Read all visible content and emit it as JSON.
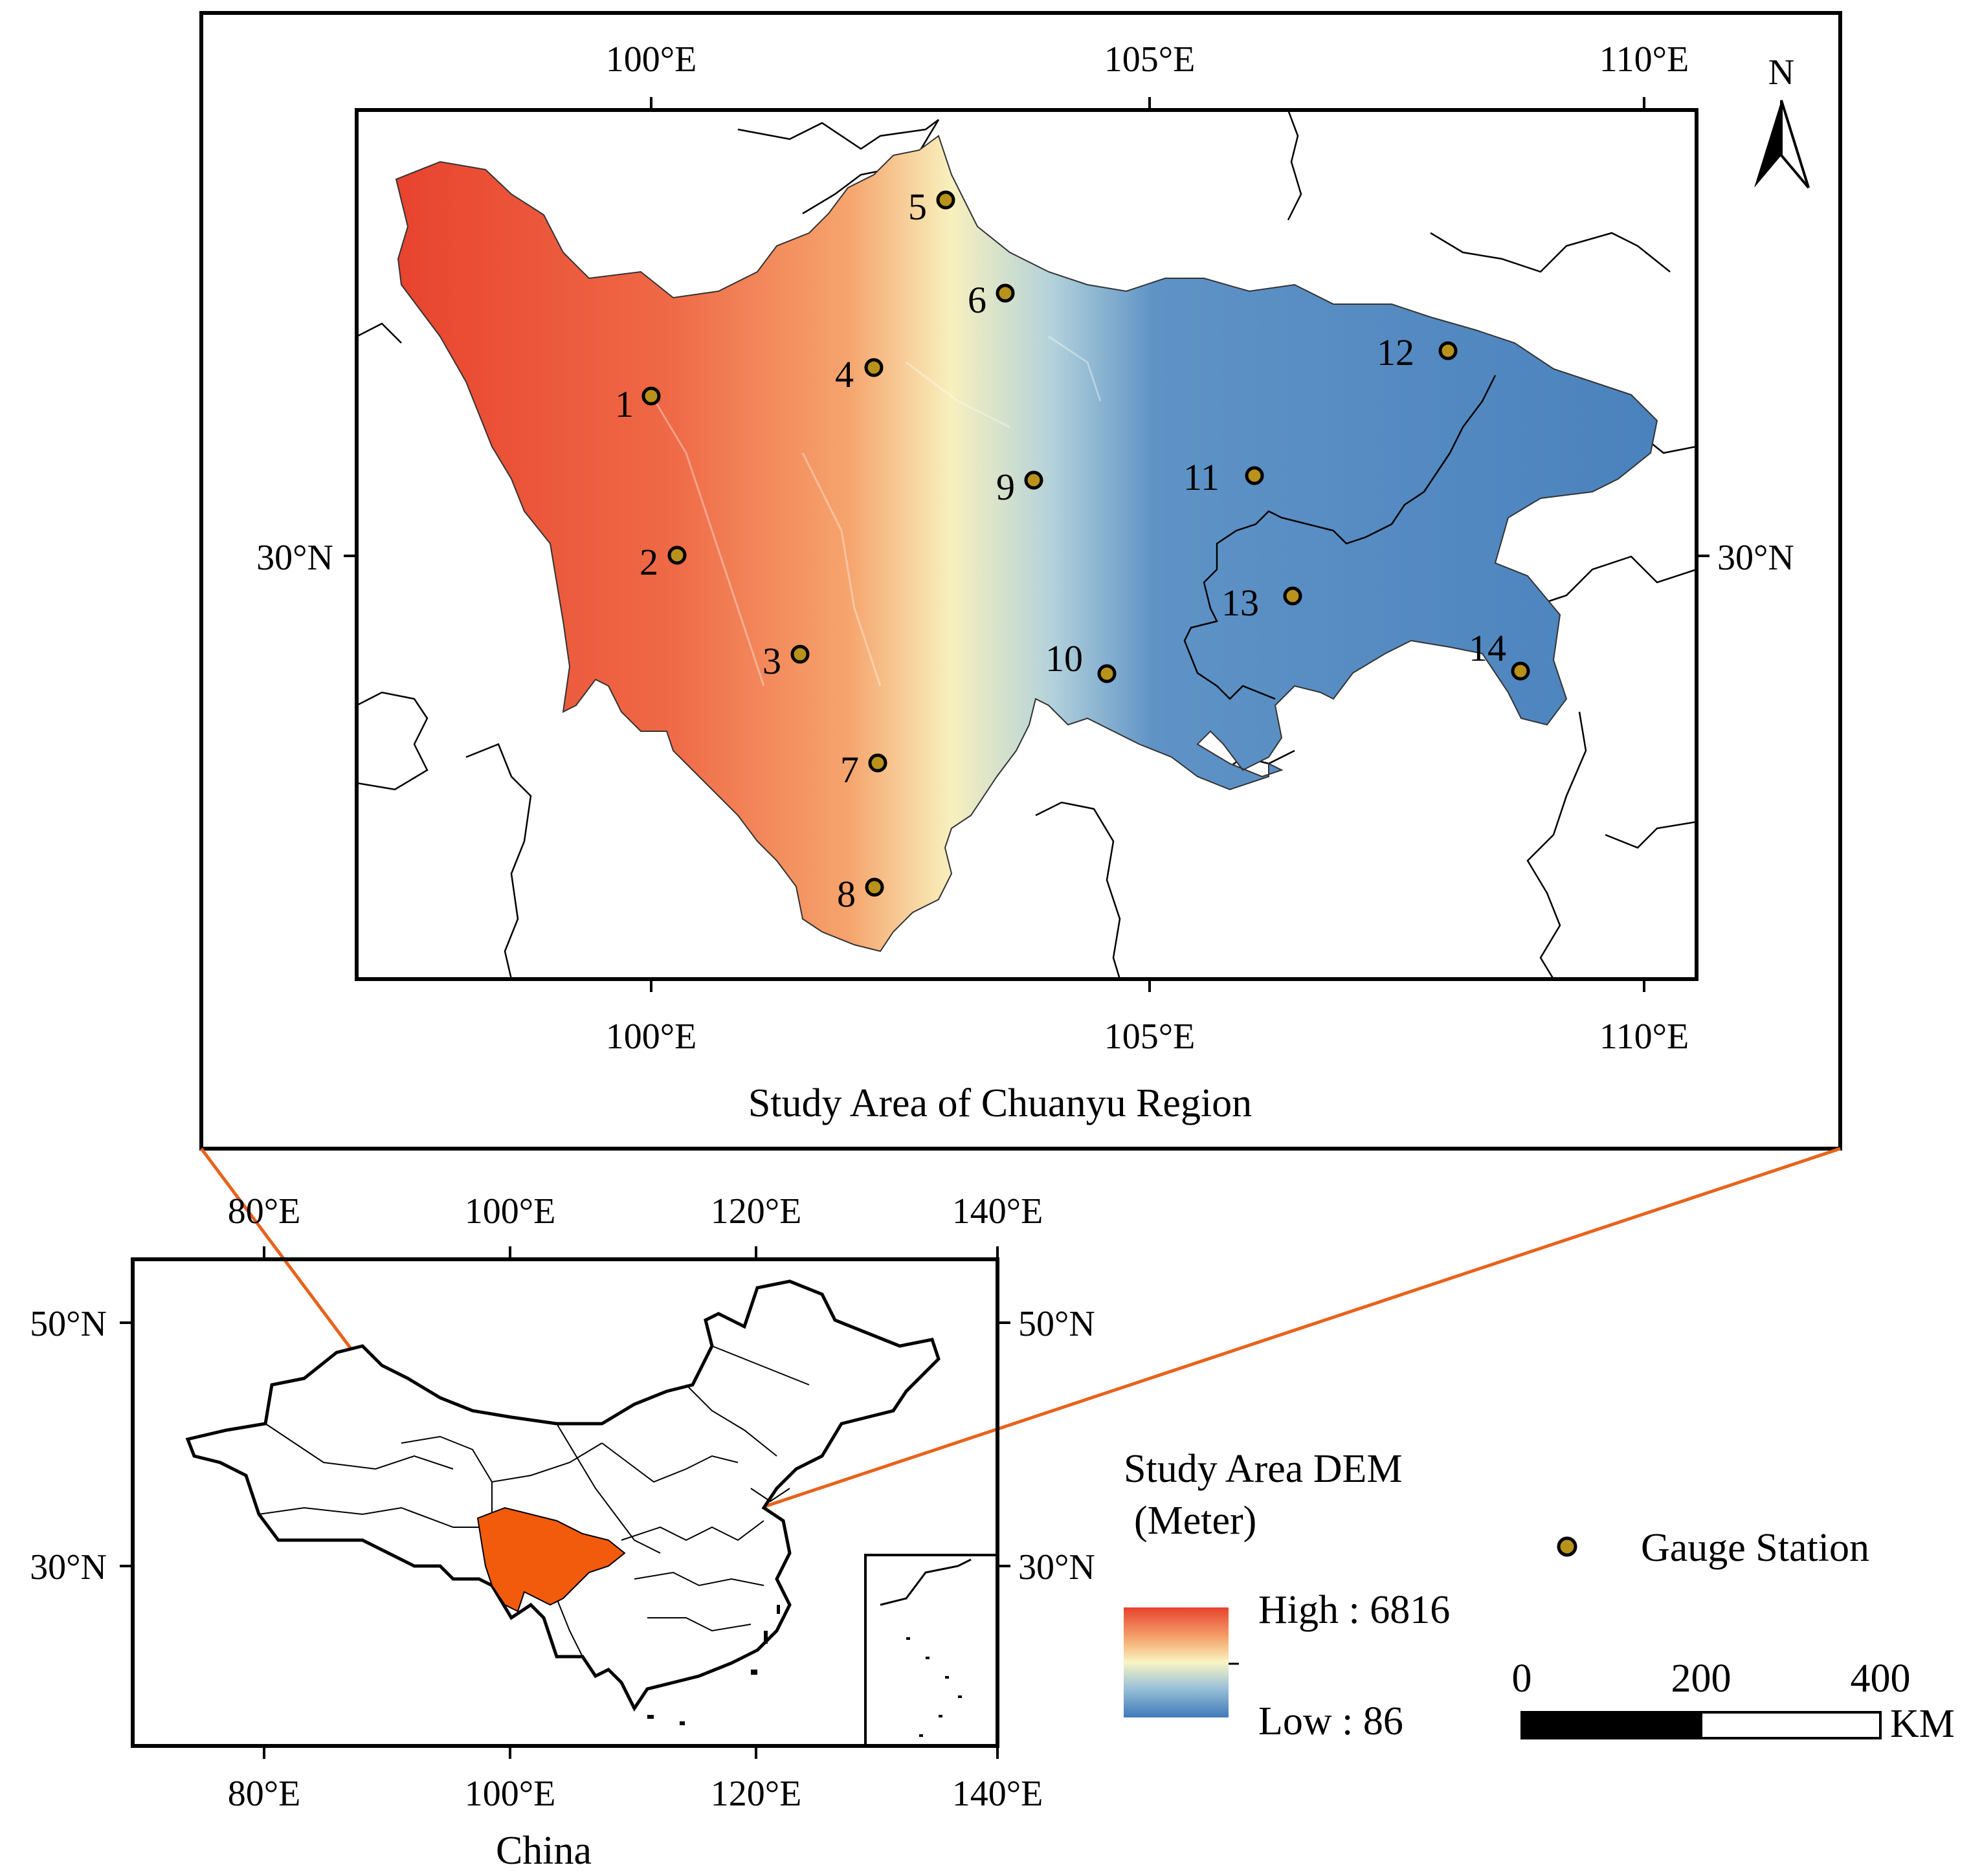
{
  "inset_map": {
    "caption": "Study Area of Chuanyu Region",
    "lon_ticks": [
      "100°E",
      "105°E",
      "110°E"
    ],
    "lat_tick": "30°N",
    "north_arrow_label": "N",
    "stations": [
      {
        "id": "1"
      },
      {
        "id": "2"
      },
      {
        "id": "3"
      },
      {
        "id": "4"
      },
      {
        "id": "5"
      },
      {
        "id": "6"
      },
      {
        "id": "7"
      },
      {
        "id": "8"
      },
      {
        "id": "9"
      },
      {
        "id": "10"
      },
      {
        "id": "11"
      },
      {
        "id": "12"
      },
      {
        "id": "13"
      },
      {
        "id": "14"
      }
    ]
  },
  "overview_map": {
    "caption": "China",
    "lon_ticks": [
      "80°E",
      "100°E",
      "120°E",
      "140°E"
    ],
    "lat_ticks": [
      "50°N",
      "30°N"
    ]
  },
  "legend": {
    "dem_title_line1": "Study Area DEM",
    "dem_title_line2": "(Meter)",
    "high_label": "High : 6816",
    "low_label": "Low : 86",
    "station_label": "Gauge Station",
    "scale_ticks": [
      "0",
      "200",
      "400"
    ],
    "scale_unit": "KM"
  },
  "colors": {
    "dem_high": "#e8432e",
    "dem_mid": "#f8f5c2",
    "dem_low": "#3f7ab9",
    "highlight": "#f25a0c",
    "connector": "#e8621c",
    "station_fill": "#b8921b"
  }
}
